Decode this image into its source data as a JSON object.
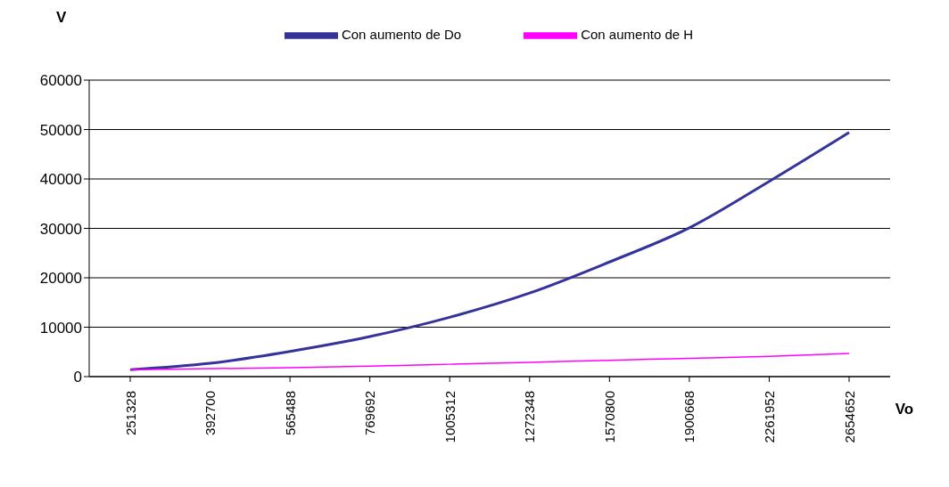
{
  "chart_data": {
    "type": "line",
    "xlabel": "Vo",
    "ylabel": "V",
    "categories": [
      "251328",
      "392700",
      "565488",
      "769692",
      "1005312",
      "1272348",
      "1570800",
      "1900668",
      "2261952",
      "2654652"
    ],
    "series": [
      {
        "name": "Con aumento de Do",
        "color": "#333399",
        "values": [
          1400,
          2700,
          5100,
          8100,
          12000,
          16900,
          23200,
          30100,
          39500,
          49400
        ]
      },
      {
        "name": "Con aumento de H",
        "color": "#ff00ff",
        "values": [
          1400,
          1600,
          1800,
          2100,
          2500,
          2900,
          3300,
          3700,
          4100,
          4700
        ]
      }
    ],
    "ylim": [
      0,
      60000
    ],
    "yticks": [
      0,
      10000,
      20000,
      30000,
      40000,
      50000,
      60000
    ],
    "grid": "y",
    "legend": "top",
    "marker": "none",
    "line_style": "solid"
  }
}
